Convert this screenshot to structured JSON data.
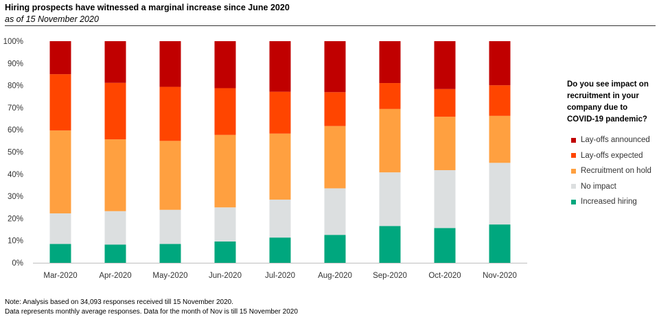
{
  "header": {
    "title": "Hiring prospects have witnessed a marginal increase since June 2020",
    "subtitle": "as of 15 November 2020"
  },
  "legend": {
    "title": "Do you see impact on recruitment in your company due to COVID-19 pandemic?",
    "items": [
      {
        "label": "Lay-offs announced",
        "color": "#C00000"
      },
      {
        "label": "Lay-offs expected",
        "color": "#FF4500"
      },
      {
        "label": "Recruitment on hold",
        "color": "#FFA040"
      },
      {
        "label": "No impact",
        "color": "#DCDFE0"
      },
      {
        "label": "Increased hiring",
        "color": "#00A77E"
      }
    ]
  },
  "notes": {
    "line1": "Note: Analysis based on 34,093 responses received till 15 November 2020.",
    "line2": "Data represents monthly average responses. Data for the month of Nov is till 15 November 2020"
  },
  "chart_data": {
    "type": "bar",
    "stacked": true,
    "percent": true,
    "categories": [
      "Mar-2020",
      "Apr-2020",
      "May-2020",
      "Jun-2020",
      "Jul-2020",
      "Aug-2020",
      "Sep-2020",
      "Oct-2020",
      "Nov-2020"
    ],
    "series": [
      {
        "name": "Increased hiring",
        "color": "#00A77E",
        "values": [
          8.5,
          8.2,
          8.5,
          9.6,
          11.4,
          12.6,
          16.6,
          15.7,
          17.3
        ]
      },
      {
        "name": "No impact",
        "color": "#DCDFE0",
        "values": [
          13.8,
          15.1,
          15.4,
          15.4,
          17.1,
          21.0,
          24.2,
          26.1,
          27.8
        ]
      },
      {
        "name": "Recruitment on hold",
        "color": "#FFA040",
        "values": [
          37.4,
          32.4,
          31.1,
          32.7,
          29.8,
          28.1,
          28.6,
          24.1,
          21.2
        ]
      },
      {
        "name": "Lay-offs expected",
        "color": "#FF4500",
        "values": [
          25.4,
          25.5,
          24.4,
          21.1,
          18.9,
          15.3,
          11.7,
          12.5,
          13.8
        ]
      },
      {
        "name": "Lay-offs announced",
        "color": "#C00000",
        "values": [
          14.9,
          18.8,
          20.6,
          21.2,
          22.8,
          23.0,
          18.9,
          21.6,
          19.9
        ]
      }
    ],
    "yticks": [
      "0%",
      "10%",
      "20%",
      "30%",
      "40%",
      "50%",
      "60%",
      "70%",
      "80%",
      "90%",
      "100%"
    ],
    "ylim": [
      0,
      100
    ],
    "xlabel": "",
    "ylabel": "",
    "grid": false,
    "legend_position": "right"
  }
}
